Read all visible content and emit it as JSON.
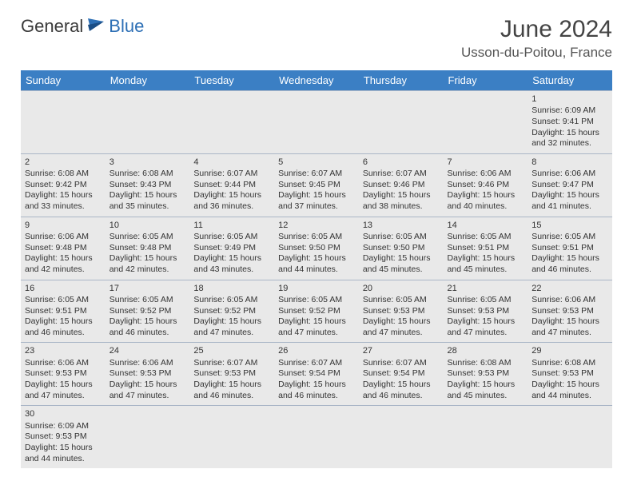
{
  "logo": {
    "general": "General",
    "blue": "Blue"
  },
  "title": "June 2024",
  "location": "Usson-du-Poitou, France",
  "colors": {
    "header_bg": "#3b7fc4",
    "header_text": "#ffffff",
    "row_bg": "#e9e9e9",
    "border": "#3b7fc4",
    "logo_blue": "#2d6fb5"
  },
  "day_headers": [
    "Sunday",
    "Monday",
    "Tuesday",
    "Wednesday",
    "Thursday",
    "Friday",
    "Saturday"
  ],
  "weeks": [
    [
      null,
      null,
      null,
      null,
      null,
      null,
      {
        "n": "1",
        "sr": "6:09 AM",
        "ss": "9:41 PM",
        "dl": "15 hours and 32 minutes."
      }
    ],
    [
      {
        "n": "2",
        "sr": "6:08 AM",
        "ss": "9:42 PM",
        "dl": "15 hours and 33 minutes."
      },
      {
        "n": "3",
        "sr": "6:08 AM",
        "ss": "9:43 PM",
        "dl": "15 hours and 35 minutes."
      },
      {
        "n": "4",
        "sr": "6:07 AM",
        "ss": "9:44 PM",
        "dl": "15 hours and 36 minutes."
      },
      {
        "n": "5",
        "sr": "6:07 AM",
        "ss": "9:45 PM",
        "dl": "15 hours and 37 minutes."
      },
      {
        "n": "6",
        "sr": "6:07 AM",
        "ss": "9:46 PM",
        "dl": "15 hours and 38 minutes."
      },
      {
        "n": "7",
        "sr": "6:06 AM",
        "ss": "9:46 PM",
        "dl": "15 hours and 40 minutes."
      },
      {
        "n": "8",
        "sr": "6:06 AM",
        "ss": "9:47 PM",
        "dl": "15 hours and 41 minutes."
      }
    ],
    [
      {
        "n": "9",
        "sr": "6:06 AM",
        "ss": "9:48 PM",
        "dl": "15 hours and 42 minutes."
      },
      {
        "n": "10",
        "sr": "6:05 AM",
        "ss": "9:48 PM",
        "dl": "15 hours and 42 minutes."
      },
      {
        "n": "11",
        "sr": "6:05 AM",
        "ss": "9:49 PM",
        "dl": "15 hours and 43 minutes."
      },
      {
        "n": "12",
        "sr": "6:05 AM",
        "ss": "9:50 PM",
        "dl": "15 hours and 44 minutes."
      },
      {
        "n": "13",
        "sr": "6:05 AM",
        "ss": "9:50 PM",
        "dl": "15 hours and 45 minutes."
      },
      {
        "n": "14",
        "sr": "6:05 AM",
        "ss": "9:51 PM",
        "dl": "15 hours and 45 minutes."
      },
      {
        "n": "15",
        "sr": "6:05 AM",
        "ss": "9:51 PM",
        "dl": "15 hours and 46 minutes."
      }
    ],
    [
      {
        "n": "16",
        "sr": "6:05 AM",
        "ss": "9:51 PM",
        "dl": "15 hours and 46 minutes."
      },
      {
        "n": "17",
        "sr": "6:05 AM",
        "ss": "9:52 PM",
        "dl": "15 hours and 46 minutes."
      },
      {
        "n": "18",
        "sr": "6:05 AM",
        "ss": "9:52 PM",
        "dl": "15 hours and 47 minutes."
      },
      {
        "n": "19",
        "sr": "6:05 AM",
        "ss": "9:52 PM",
        "dl": "15 hours and 47 minutes."
      },
      {
        "n": "20",
        "sr": "6:05 AM",
        "ss": "9:53 PM",
        "dl": "15 hours and 47 minutes."
      },
      {
        "n": "21",
        "sr": "6:05 AM",
        "ss": "9:53 PM",
        "dl": "15 hours and 47 minutes."
      },
      {
        "n": "22",
        "sr": "6:06 AM",
        "ss": "9:53 PM",
        "dl": "15 hours and 47 minutes."
      }
    ],
    [
      {
        "n": "23",
        "sr": "6:06 AM",
        "ss": "9:53 PM",
        "dl": "15 hours and 47 minutes."
      },
      {
        "n": "24",
        "sr": "6:06 AM",
        "ss": "9:53 PM",
        "dl": "15 hours and 47 minutes."
      },
      {
        "n": "25",
        "sr": "6:07 AM",
        "ss": "9:53 PM",
        "dl": "15 hours and 46 minutes."
      },
      {
        "n": "26",
        "sr": "6:07 AM",
        "ss": "9:54 PM",
        "dl": "15 hours and 46 minutes."
      },
      {
        "n": "27",
        "sr": "6:07 AM",
        "ss": "9:54 PM",
        "dl": "15 hours and 46 minutes."
      },
      {
        "n": "28",
        "sr": "6:08 AM",
        "ss": "9:53 PM",
        "dl": "15 hours and 45 minutes."
      },
      {
        "n": "29",
        "sr": "6:08 AM",
        "ss": "9:53 PM",
        "dl": "15 hours and 44 minutes."
      }
    ],
    [
      {
        "n": "30",
        "sr": "6:09 AM",
        "ss": "9:53 PM",
        "dl": "15 hours and 44 minutes."
      },
      null,
      null,
      null,
      null,
      null,
      null
    ]
  ],
  "labels": {
    "sunrise": "Sunrise: ",
    "sunset": "Sunset: ",
    "daylight": "Daylight: "
  }
}
